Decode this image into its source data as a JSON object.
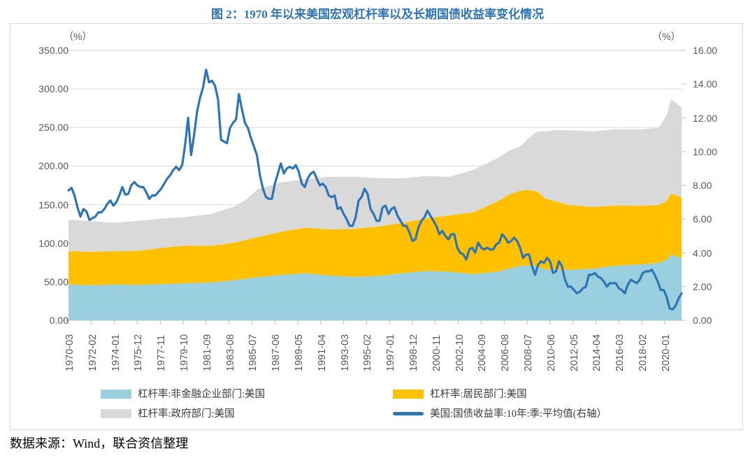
{
  "title": "图 2：1970 年以来美国宏观杠杆率以及长期国债收益率变化情况",
  "source_note": "数据来源：Wind，联合资信整理",
  "colors": {
    "title": "#2E74B5",
    "axis_text": "#595959",
    "gridline": "#D9D9D9",
    "axis_line": "#BFBFBF",
    "border": "#D9D9D9",
    "corporate_area": "#99CFDE",
    "household_area": "#FFC000",
    "government_area": "#D9D9D9",
    "yield_line": "#2E75B6"
  },
  "chart_data": {
    "type": "area",
    "subtype": "stacked-area-with-secondary-line",
    "grid": true,
    "left_axis": {
      "unit": "（%）",
      "min": 0,
      "max": 350,
      "tick_labels": [
        "350.00",
        "300.00",
        "250.00",
        "200.00",
        "150.00",
        "100.00",
        "50.00",
        "0.00"
      ]
    },
    "right_axis": {
      "unit": "（%）",
      "min": 0,
      "max": 16,
      "tick_labels": [
        "16.00",
        "14.00",
        "12.00",
        "10.00",
        "8.00",
        "6.00",
        "4.00",
        "2.00",
        "0.00"
      ]
    },
    "x_axis": {
      "start": "1970-03",
      "end": "2021-06",
      "tick_interval_months": 23,
      "tick_labels": [
        "1970-03",
        "1972-02",
        "1974-01",
        "1975-12",
        "1977-11",
        "1979-10",
        "1981-09",
        "1983-08",
        "1985-07",
        "1987-06",
        "1989-05",
        "1991-04",
        "1993-03",
        "1995-02",
        "1997-01",
        "1998-12",
        "2000-11",
        "2002-10",
        "2004-09",
        "2006-08",
        "2008-07",
        "2010-06",
        "2012-05",
        "2014-04",
        "2016-03",
        "2018-02",
        "2020-01"
      ]
    },
    "areas": [
      {
        "name": "杠杆率:非金融企业部门:美国",
        "color": "#99CFDE",
        "points": [
          [
            1970.2,
            46.5
          ],
          [
            1972,
            45.5
          ],
          [
            1974,
            46.5
          ],
          [
            1976,
            46
          ],
          [
            1978,
            47
          ],
          [
            1980,
            48
          ],
          [
            1982,
            49
          ],
          [
            1984,
            52
          ],
          [
            1986,
            56
          ],
          [
            1988,
            59
          ],
          [
            1990,
            61
          ],
          [
            1992,
            58
          ],
          [
            1994,
            56.5
          ],
          [
            1996,
            57.5
          ],
          [
            1998,
            61
          ],
          [
            2000,
            64
          ],
          [
            2002,
            63
          ],
          [
            2004,
            60
          ],
          [
            2006,
            63
          ],
          [
            2008,
            71
          ],
          [
            2009.2,
            71
          ],
          [
            2010,
            66
          ],
          [
            2012,
            65.5
          ],
          [
            2014,
            67
          ],
          [
            2016,
            71
          ],
          [
            2018,
            72.5
          ],
          [
            2019.5,
            74.5
          ],
          [
            2020.2,
            79
          ],
          [
            2020.5,
            85
          ],
          [
            2020.8,
            84
          ],
          [
            2021,
            83
          ],
          [
            2021.42,
            81
          ]
        ]
      },
      {
        "name": "杠杆率:居民部门:美国",
        "color": "#FFC000",
        "points": [
          [
            1970.2,
            43
          ],
          [
            1972,
            43.5
          ],
          [
            1974,
            43
          ],
          [
            1976,
            44
          ],
          [
            1978,
            47
          ],
          [
            1980,
            49
          ],
          [
            1982,
            47.5
          ],
          [
            1984,
            48.5
          ],
          [
            1986,
            52
          ],
          [
            1988,
            56
          ],
          [
            1990,
            59
          ],
          [
            1992,
            60
          ],
          [
            1994,
            62
          ],
          [
            1996,
            64
          ],
          [
            1998,
            65
          ],
          [
            2000,
            68
          ],
          [
            2002,
            73
          ],
          [
            2004,
            80
          ],
          [
            2006,
            91
          ],
          [
            2007,
            96
          ],
          [
            2008.5,
            98
          ],
          [
            2009.5,
            96
          ],
          [
            2010,
            92
          ],
          [
            2012,
            84
          ],
          [
            2014,
            80
          ],
          [
            2016,
            78
          ],
          [
            2018,
            76
          ],
          [
            2019.5,
            75
          ],
          [
            2020.2,
            76
          ],
          [
            2020.5,
            79
          ],
          [
            2021,
            79
          ],
          [
            2021.42,
            78
          ]
        ]
      },
      {
        "name": "杠杆率:政府部门:美国",
        "color": "#D9D9D9",
        "points": [
          [
            1970.2,
            41
          ],
          [
            1972,
            39.5
          ],
          [
            1974,
            37
          ],
          [
            1976,
            39
          ],
          [
            1978,
            38
          ],
          [
            1980,
            37
          ],
          [
            1982,
            41
          ],
          [
            1984,
            47
          ],
          [
            1985,
            52
          ],
          [
            1986,
            62
          ],
          [
            1988,
            64
          ],
          [
            1990,
            63
          ],
          [
            1992,
            68
          ],
          [
            1994,
            67.5
          ],
          [
            1996,
            63
          ],
          [
            1998,
            58
          ],
          [
            2000,
            55
          ],
          [
            2002,
            50
          ],
          [
            2004,
            55
          ],
          [
            2006,
            56
          ],
          [
            2008,
            58
          ],
          [
            2009,
            73
          ],
          [
            2010,
            87
          ],
          [
            2011,
            93
          ],
          [
            2012,
            97
          ],
          [
            2014,
            98
          ],
          [
            2016,
            99
          ],
          [
            2018,
            99
          ],
          [
            2019.5,
            100
          ],
          [
            2020.2,
            112
          ],
          [
            2020.5,
            122
          ],
          [
            2020.8,
            121
          ],
          [
            2021,
            119
          ],
          [
            2021.42,
            117
          ]
        ]
      }
    ],
    "line": {
      "name": "美国:国债收益率:10年:季:平均值(右轴）",
      "color": "#2E75B6",
      "axis": "right",
      "start_year": 1970.1667,
      "step_years": 0.25,
      "values": [
        7.7,
        7.85,
        7.4,
        6.7,
        6.15,
        6.6,
        6.45,
        5.95,
        6.05,
        6.15,
        6.4,
        6.4,
        6.6,
        6.9,
        7.1,
        6.8,
        7.0,
        7.4,
        7.9,
        7.45,
        7.5,
        8.0,
        8.2,
        8.0,
        7.9,
        7.9,
        7.6,
        7.2,
        7.4,
        7.4,
        7.6,
        7.8,
        8.1,
        8.4,
        8.6,
        8.9,
        9.1,
        8.9,
        9.2,
        10.4,
        12.0,
        9.8,
        11.0,
        12.4,
        13.2,
        13.8,
        14.85,
        14.1,
        14.2,
        13.9,
        13.1,
        10.7,
        10.6,
        10.5,
        11.4,
        11.7,
        11.9,
        13.4,
        12.5,
        11.7,
        11.4,
        10.8,
        10.3,
        9.8,
        8.6,
        7.8,
        7.3,
        7.2,
        7.2,
        8.1,
        8.7,
        9.3,
        8.7,
        9.0,
        9.1,
        9.0,
        9.2,
        8.8,
        8.1,
        7.9,
        8.4,
        8.7,
        8.8,
        8.4,
        8.0,
        8.1,
        7.9,
        7.4,
        7.3,
        7.4,
        6.6,
        6.7,
        6.3,
        6.0,
        5.6,
        5.6,
        6.1,
        7.1,
        7.3,
        7.8,
        7.5,
        6.6,
        6.3,
        5.9,
        5.9,
        6.7,
        6.8,
        6.3,
        6.6,
        6.7,
        6.2,
        5.9,
        5.6,
        5.6,
        5.2,
        4.7,
        4.8,
        5.5,
        5.9,
        6.1,
        6.5,
        6.2,
        5.9,
        5.6,
        5.1,
        5.3,
        5.0,
        4.8,
        5.1,
        5.1,
        4.3,
        4.0,
        3.9,
        3.6,
        4.2,
        4.3,
        4.0,
        4.6,
        4.3,
        4.2,
        4.3,
        4.2,
        4.2,
        4.5,
        4.6,
        5.1,
        4.9,
        4.6,
        4.7,
        4.9,
        4.7,
        4.3,
        3.7,
        3.9,
        3.9,
        3.2,
        2.7,
        3.3,
        3.5,
        3.4,
        3.7,
        3.5,
        2.8,
        2.9,
        3.5,
        3.2,
        2.4,
        2.0,
        2.0,
        1.8,
        1.6,
        1.7,
        1.9,
        2.0,
        2.7,
        2.7,
        2.8,
        2.6,
        2.5,
        2.3,
        2.0,
        2.2,
        2.2,
        2.2,
        1.9,
        1.8,
        1.6,
        2.1,
        2.4,
        2.3,
        2.2,
        2.4,
        2.8,
        2.9,
        2.9,
        3.0,
        2.7,
        2.3,
        1.8,
        1.8,
        1.4,
        0.7,
        0.65,
        0.86,
        1.3,
        1.6
      ]
    }
  }
}
